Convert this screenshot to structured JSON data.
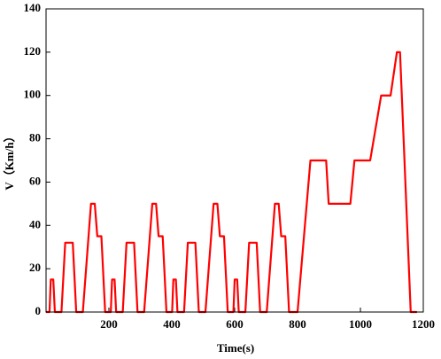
{
  "chart_data": {
    "type": "line",
    "x_label": "Time(s)",
    "y_label": "V（Km/h）",
    "x": [
      0,
      11,
      15,
      23,
      28,
      49,
      61,
      85,
      96,
      117,
      143,
      155,
      163,
      176,
      188,
      195,
      206,
      210,
      218,
      223,
      244,
      256,
      280,
      291,
      312,
      338,
      350,
      358,
      371,
      383,
      390,
      401,
      405,
      413,
      418,
      439,
      451,
      475,
      486,
      507,
      533,
      545,
      553,
      566,
      578,
      585,
      596,
      600,
      608,
      613,
      634,
      646,
      670,
      681,
      702,
      728,
      740,
      748,
      761,
      773,
      780,
      800,
      841,
      891,
      899,
      968,
      981,
      1031,
      1066,
      1096,
      1116,
      1126,
      1160,
      1180
    ],
    "series": [
      {
        "color": "#ff0000",
        "values": [
          0,
          0,
          15,
          15,
          0,
          0,
          32,
          32,
          0,
          0,
          50,
          50,
          35,
          35,
          0,
          0,
          0,
          15,
          15,
          0,
          0,
          32,
          32,
          0,
          0,
          50,
          50,
          35,
          35,
          0,
          0,
          0,
          15,
          15,
          0,
          0,
          32,
          32,
          0,
          0,
          50,
          50,
          35,
          35,
          0,
          0,
          0,
          15,
          15,
          0,
          0,
          32,
          32,
          0,
          0,
          50,
          50,
          35,
          35,
          0,
          0,
          0,
          70,
          70,
          50,
          50,
          70,
          70,
          100,
          100,
          120,
          120,
          0,
          0
        ]
      }
    ],
    "xlim": [
      0,
      1200
    ],
    "xticks": [
      200,
      400,
      600,
      800,
      1000,
      1200
    ],
    "ylim": [
      0,
      140
    ],
    "yticks": [
      0,
      20,
      40,
      60,
      80,
      100,
      120,
      140
    ]
  }
}
